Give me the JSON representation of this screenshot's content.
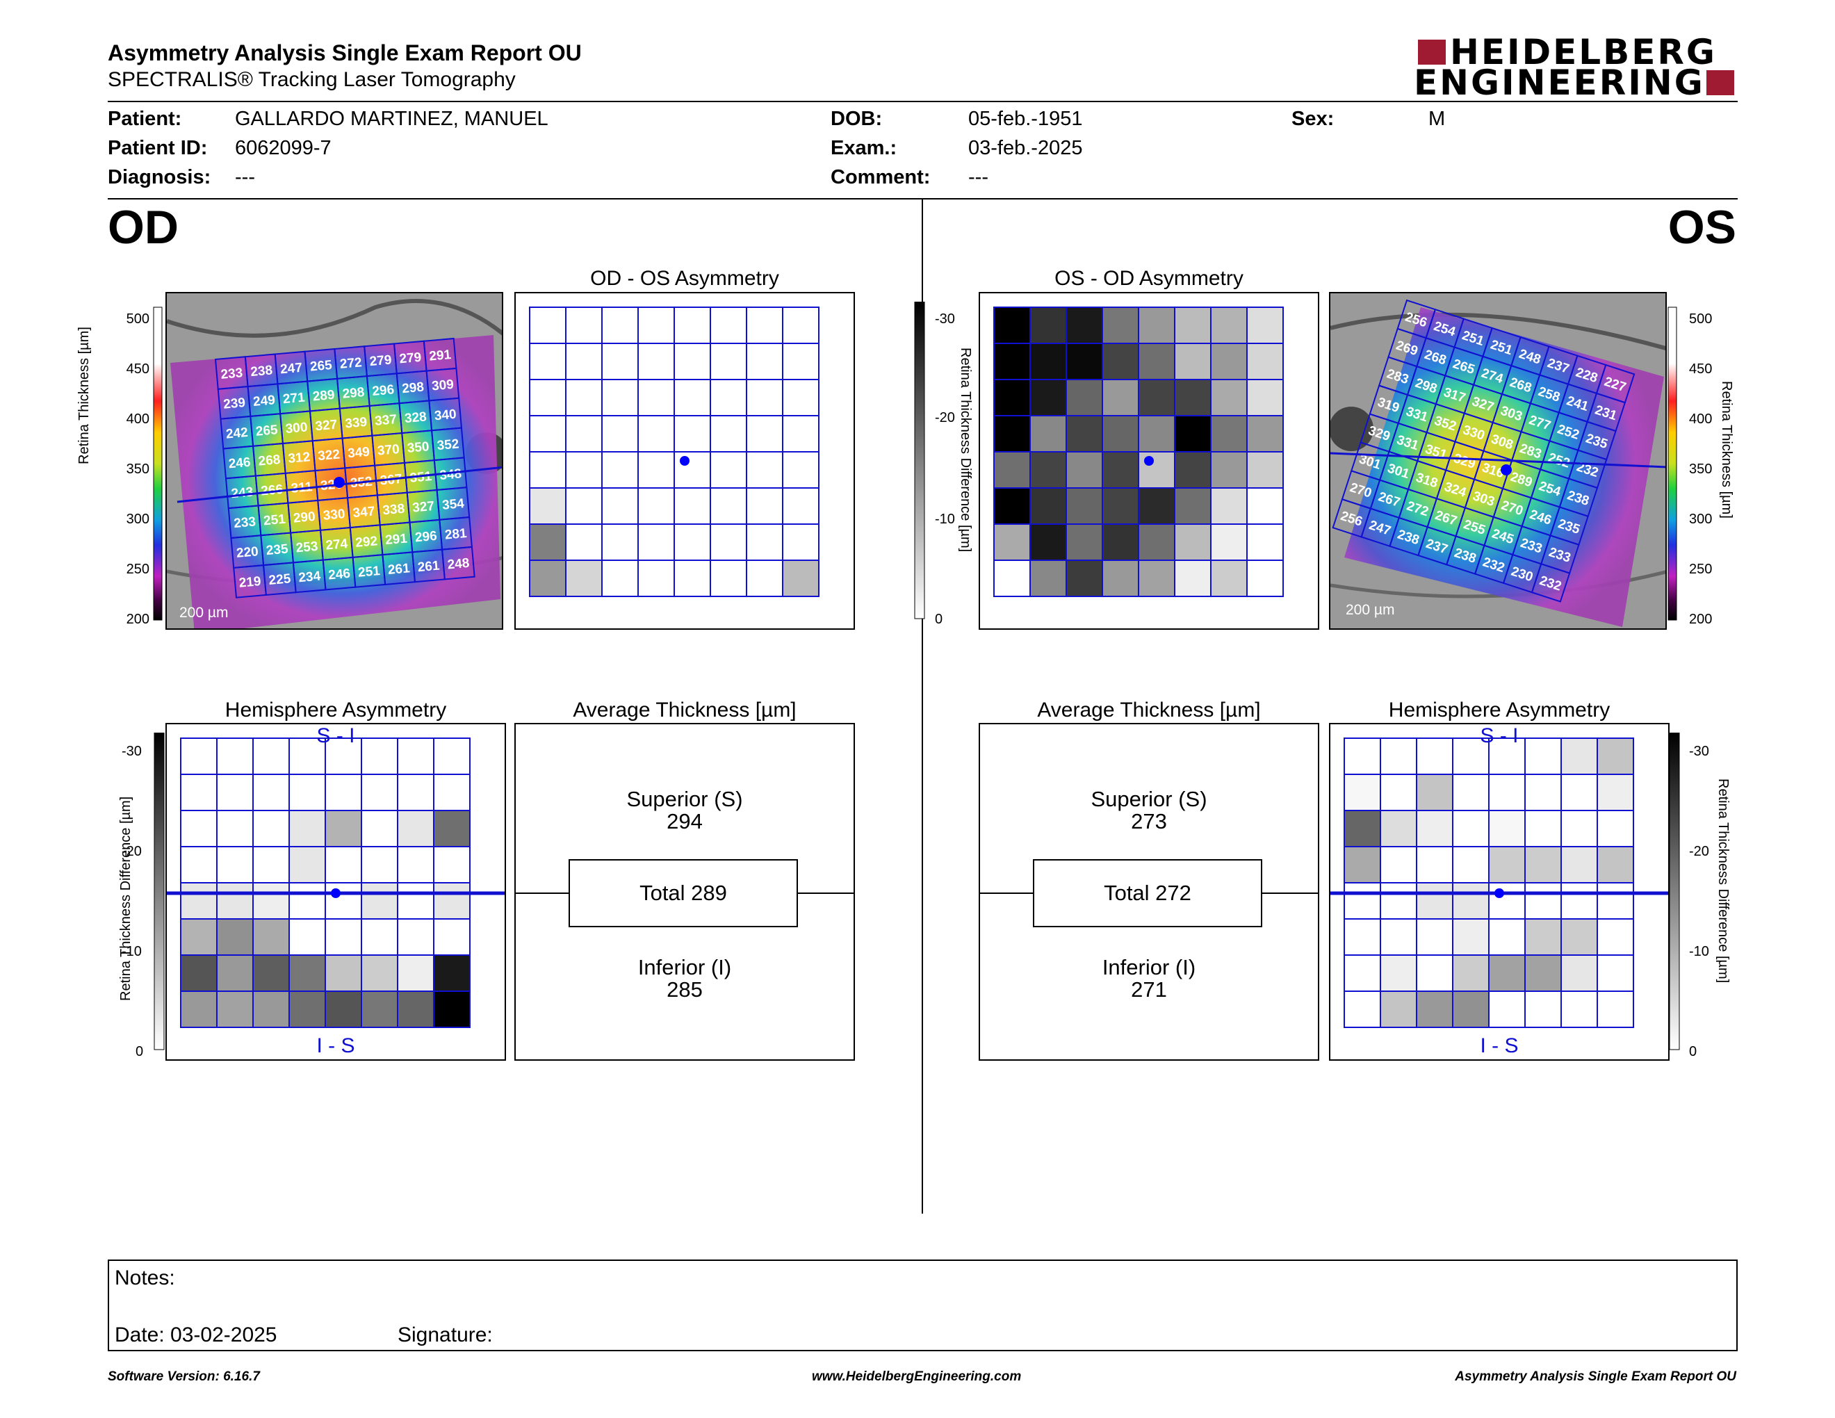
{
  "header": {
    "title": "Asymmetry Analysis Single Exam Report OU",
    "subtitle": "SPECTRALIS® Tracking Laser Tomography",
    "logo_line1": "HEIDELBERG",
    "logo_line2": "ENGINEERING",
    "brand_color": "#9e1b32"
  },
  "patient": {
    "patient_label": "Patient:",
    "patient_value": "GALLARDO MARTINEZ, MANUEL",
    "id_label": "Patient ID:",
    "id_value": "6062099-7",
    "diagnosis_label": "Diagnosis:",
    "diagnosis_value": "---",
    "dob_label": "DOB:",
    "dob_value": "05-feb.-1951",
    "exam_label": "Exam.:",
    "exam_value": "03-feb.-2025",
    "comment_label": "Comment:",
    "comment_value": "---",
    "sex_label": "Sex:",
    "sex_value": "M"
  },
  "od": {
    "label": "OD",
    "scale_label": "200 µm",
    "thickness_axis": {
      "label": "Retina  Thickness [µm]",
      "ticks": [
        "500",
        "450",
        "400",
        "350",
        "300",
        "250",
        "200"
      ]
    },
    "thickness_grid": [
      [
        233,
        238,
        247,
        265,
        272,
        279,
        279,
        291
      ],
      [
        239,
        249,
        271,
        289,
        298,
        296,
        298,
        309
      ],
      [
        242,
        265,
        300,
        327,
        339,
        337,
        328,
        340
      ],
      [
        246,
        268,
        312,
        322,
        349,
        370,
        350,
        352
      ],
      [
        243,
        266,
        311,
        326,
        352,
        367,
        351,
        348
      ],
      [
        233,
        251,
        290,
        330,
        347,
        338,
        327,
        354
      ],
      [
        220,
        235,
        253,
        274,
        292,
        291,
        296,
        281
      ],
      [
        219,
        225,
        234,
        246,
        251,
        261,
        261,
        248
      ]
    ],
    "asym_title": "OD - OS Asymmetry",
    "asym_grid": [
      [
        0,
        0,
        0,
        0,
        0,
        0,
        0,
        0
      ],
      [
        0,
        0,
        0,
        0,
        0,
        0,
        0,
        0
      ],
      [
        0,
        0,
        0,
        0,
        0,
        0,
        0,
        0
      ],
      [
        0,
        0,
        0,
        0,
        0,
        0,
        0,
        0
      ],
      [
        0,
        0,
        0,
        0,
        0,
        0,
        0,
        0
      ],
      [
        3,
        0,
        0,
        0,
        0,
        0,
        0,
        0
      ],
      [
        15,
        0,
        0,
        0,
        0,
        0,
        0,
        0
      ],
      [
        12,
        5,
        0,
        0,
        0,
        0,
        0,
        8
      ]
    ],
    "diff_axis": {
      "label": "Retina Thickness Difference [µm]",
      "ticks": [
        "-30",
        "-20",
        "-10",
        "0"
      ]
    },
    "hemi_title": "Hemisphere Asymmetry",
    "hemi_top": "S - I",
    "hemi_bottom": "I - S",
    "hemi_grid": [
      [
        0,
        0,
        0,
        0,
        0,
        0,
        0,
        0
      ],
      [
        0,
        0,
        0,
        0,
        0,
        0,
        0,
        0
      ],
      [
        0,
        0,
        0,
        3,
        9,
        0,
        3,
        17
      ],
      [
        0,
        0,
        0,
        3,
        0,
        0,
        0,
        0
      ],
      [
        3,
        3,
        2,
        0,
        0,
        3,
        0,
        3
      ],
      [
        9,
        13,
        10,
        0,
        0,
        0,
        0,
        0
      ],
      [
        20,
        12,
        19,
        16,
        7,
        6,
        2,
        27
      ],
      [
        12,
        11,
        12,
        17,
        20,
        16,
        18,
        30
      ]
    ],
    "avg_title": "Average Thickness [µm]",
    "superior_label": "Superior (S)",
    "superior_value": "294",
    "total_label": "Total 289",
    "inferior_label": "Inferior (I)",
    "inferior_value": "285"
  },
  "os": {
    "label": "OS",
    "scale_label": "200 µm",
    "thickness_axis": {
      "label": "Retina  Thickness [µm]",
      "ticks": [
        "500",
        "450",
        "400",
        "350",
        "300",
        "250",
        "200"
      ]
    },
    "thickness_grid": [
      [
        256,
        254,
        251,
        251,
        248,
        237,
        228,
        227
      ],
      [
        269,
        268,
        265,
        274,
        268,
        258,
        241,
        231
      ],
      [
        283,
        298,
        317,
        327,
        303,
        277,
        252,
        235
      ],
      [
        319,
        331,
        352,
        330,
        308,
        283,
        252,
        232
      ],
      [
        329,
        331,
        351,
        329,
        316,
        289,
        254,
        238
      ],
      [
        301,
        301,
        318,
        324,
        303,
        270,
        246,
        235
      ],
      [
        270,
        267,
        272,
        267,
        255,
        245,
        233,
        233
      ],
      [
        256,
        247,
        238,
        237,
        238,
        232,
        230,
        232
      ]
    ],
    "asym_title": "OS - OD Asymmetry",
    "asym_grid": [
      [
        30,
        24,
        27,
        16,
        12,
        8,
        9,
        4
      ],
      [
        30,
        28,
        29,
        22,
        17,
        8,
        12,
        5
      ],
      [
        30,
        27,
        18,
        12,
        22,
        22,
        10,
        4
      ],
      [
        30,
        14,
        22,
        18,
        14,
        30,
        16,
        12
      ],
      [
        17,
        22,
        14,
        22,
        7,
        22,
        12,
        6
      ],
      [
        30,
        24,
        18,
        22,
        25,
        17,
        4,
        0
      ],
      [
        10,
        27,
        17,
        24,
        17,
        8,
        2,
        0
      ],
      [
        0,
        14,
        23,
        12,
        11,
        2,
        6,
        0
      ]
    ],
    "diff_axis": {
      "label": "Retina Thickness Difference [µm]",
      "ticks": [
        "-30",
        "-20",
        "-10",
        "0"
      ]
    },
    "hemi_title": "Hemisphere Asymmetry",
    "hemi_top": "S - I",
    "hemi_bottom": "I - S",
    "hemi_grid": [
      [
        0,
        0,
        0,
        0,
        0,
        0,
        3,
        7
      ],
      [
        1,
        0,
        7,
        0,
        0,
        0,
        0,
        2
      ],
      [
        18,
        4,
        2,
        0,
        1,
        0,
        0,
        0
      ],
      [
        10,
        0,
        0,
        0,
        6,
        6,
        3,
        7
      ],
      [
        0,
        0,
        3,
        3,
        0,
        0,
        0,
        0
      ],
      [
        0,
        0,
        0,
        2,
        0,
        6,
        6,
        0
      ],
      [
        0,
        2,
        0,
        6,
        11,
        11,
        3,
        0
      ],
      [
        0,
        7,
        12,
        13,
        0,
        0,
        0,
        0
      ]
    ],
    "avg_title": "Average Thickness [µm]",
    "superior_label": "Superior (S)",
    "superior_value": "273",
    "total_label": "Total 272",
    "inferior_label": "Inferior (I)",
    "inferior_value": "271"
  },
  "notes": {
    "notes_label": "Notes:",
    "date_label": "Date: 03-02-2025",
    "signature_label": "Signature:"
  },
  "footer": {
    "software": "Software Version: 6.16.7",
    "website": "www.HeidelbergEngineering.com",
    "report": "Asymmetry Analysis Single Exam Report OU"
  },
  "colors": {
    "grid_line": "#1010d0",
    "fovea_marker": "#0000ff"
  }
}
